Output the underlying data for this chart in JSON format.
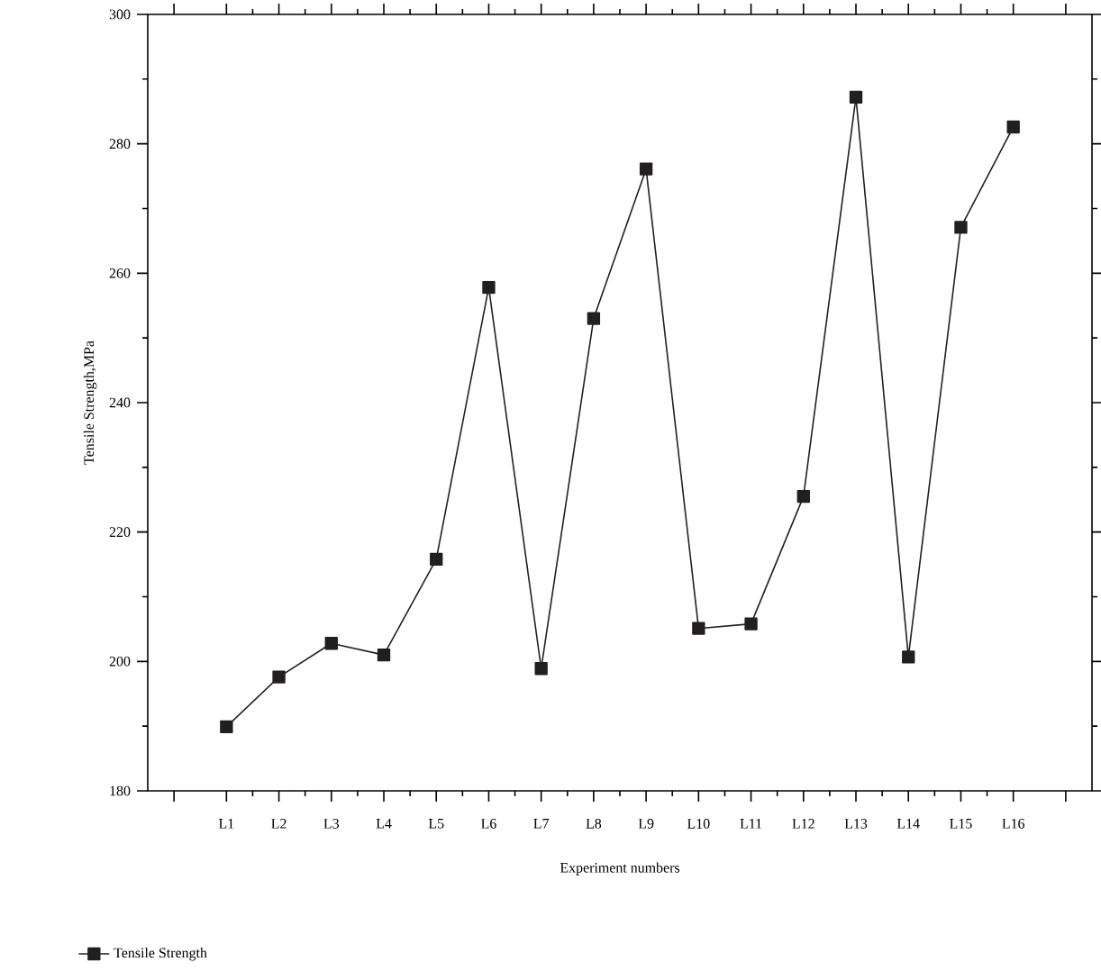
{
  "chart_data": {
    "type": "line",
    "xlabel": "Experiment numbers",
    "ylabel": "Tensile Strength,MPa",
    "categories": [
      "L1",
      "L2",
      "L3",
      "L4",
      "L5",
      "L6",
      "L7",
      "L8",
      "L9",
      "L10",
      "L11",
      "L12",
      "L13",
      "L14",
      "L15",
      "L16"
    ],
    "series": [
      {
        "name": "Tensile Strength",
        "color": "#231f20",
        "values": [
          189.9,
          197.6,
          202.8,
          201,
          215.8,
          257.8,
          198.9,
          253,
          276.1,
          205.1,
          205.8,
          225.5,
          287.2,
          200.7,
          267.1,
          282.6
        ]
      }
    ],
    "ylim": [
      180,
      300
    ],
    "yticks": [
      180,
      200,
      220,
      240,
      260,
      280,
      300
    ],
    "marker": "square",
    "line_style": "solid",
    "legend": "bottom left",
    "grid": false
  }
}
